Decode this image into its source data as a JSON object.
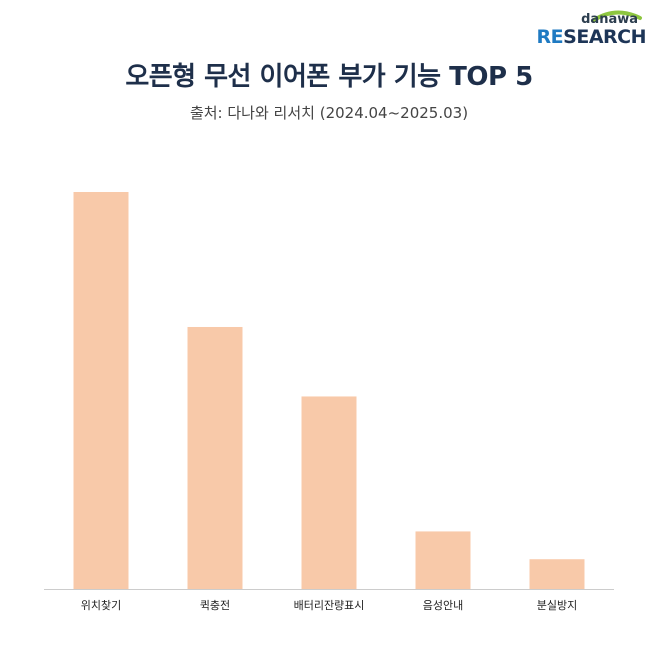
{
  "logo": {
    "top": "danawa",
    "bottom_accent": "RE",
    "bottom_rest": "SEARCH"
  },
  "chart_data": {
    "type": "bar",
    "title": "오픈형 무선 이어폰 부가 기능 TOP 5",
    "subtitle": "출처: 다나와 리서치 (2024.04~2025.03)",
    "categories": [
      "위치찾기",
      "퀵충전",
      "배터리잔량표시",
      "음성안내",
      "분실방지"
    ],
    "values": [
      100,
      66,
      48.5,
      14.5,
      7.5
    ],
    "ylim": [
      0,
      100
    ],
    "grid": false,
    "bar_color": "#f8c9a9",
    "axis_color": "#cccccc"
  }
}
